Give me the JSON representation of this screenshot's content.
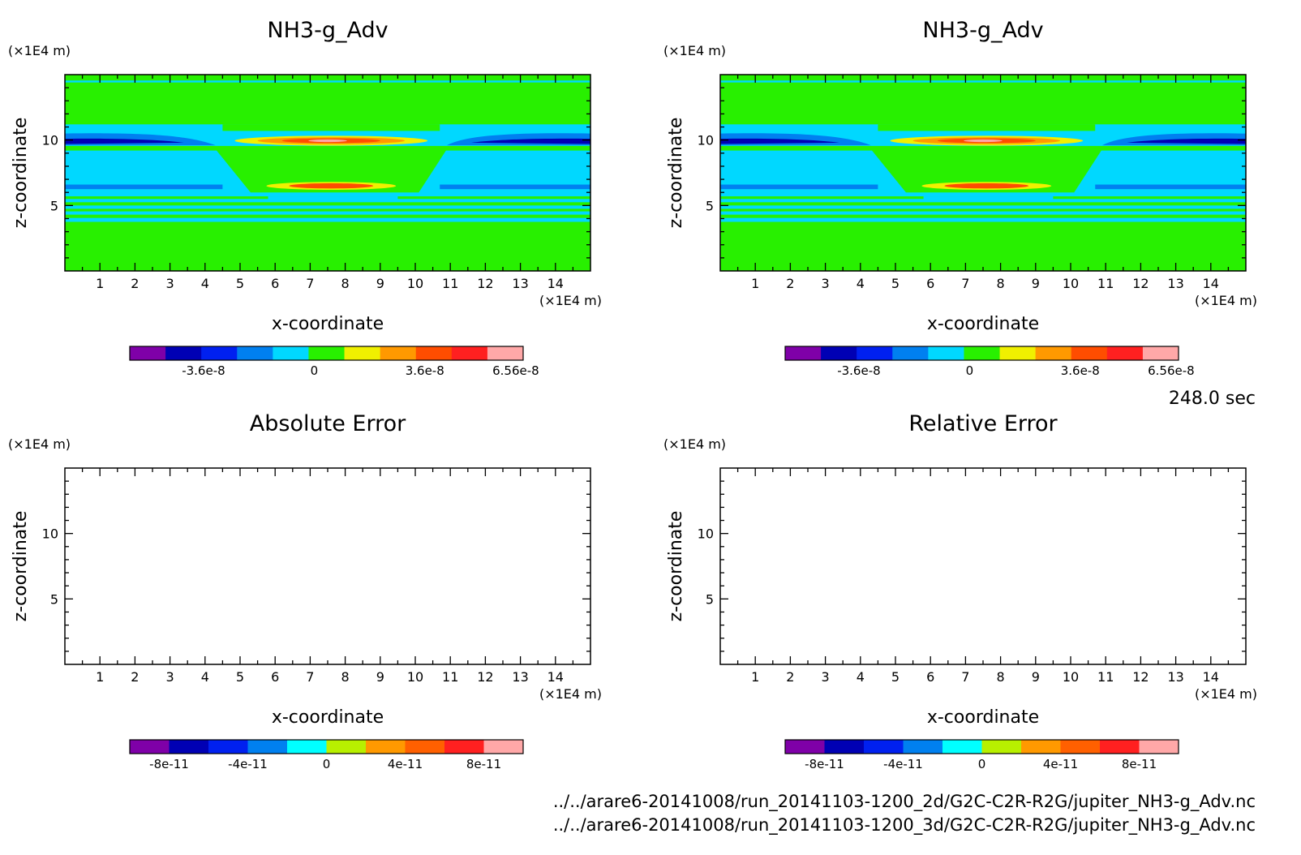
{
  "chart_data": [
    {
      "type": "heatmap",
      "title": "NH3-g_Adv",
      "xlabel": "x-coordinate",
      "ylabel": "z-coordinate",
      "x_unit": "(×1E4 m)",
      "y_unit": "(×1E4 m)",
      "xlim": [
        0,
        15
      ],
      "ylim": [
        0,
        15
      ],
      "x_ticks": [
        "1",
        "2",
        "3",
        "4",
        "5",
        "6",
        "7",
        "8",
        "9",
        "10",
        "11",
        "12",
        "13",
        "14"
      ],
      "y_ticks": [
        "5",
        "10"
      ],
      "colorbar": {
        "colors": [
          "#7f00a8",
          "#0000b4",
          "#0020f0",
          "#0080f0",
          "#00d8ff",
          "#28f000",
          "#f0f000",
          "#ff9900",
          "#ff4d00",
          "#ff2020",
          "#ffa8a8"
        ],
        "labels": [
          "-3.6e-8",
          "0",
          "3.6e-8",
          "6.56e-8"
        ],
        "label_values": [
          -3.6e-08,
          0,
          3.6e-08,
          6.56e-08
        ],
        "range": [
          -6e-08,
          6.8e-08
        ]
      },
      "field_regions": [
        {
          "level": "green",
          "z": [
            0,
            15
          ],
          "x": [
            0,
            15
          ],
          "note": "background 0"
        },
        {
          "level": "cyan",
          "z": [
            5.6,
            11.2
          ],
          "x": [
            0,
            15
          ]
        },
        {
          "level": "blue",
          "z": [
            9.2,
            10.4
          ],
          "x": [
            0,
            4.2
          ]
        },
        {
          "level": "navy",
          "z": [
            9.6,
            10.0
          ],
          "x": [
            0,
            2.8
          ]
        },
        {
          "level": "yellow",
          "z": [
            9.6,
            10.3
          ],
          "x": [
            4.8,
            10.3
          ]
        },
        {
          "level": "orange",
          "z": [
            9.7,
            10.2
          ],
          "x": [
            5.5,
            9.6
          ]
        },
        {
          "level": "red",
          "z": [
            9.75,
            10.15
          ],
          "x": [
            6.2,
            8.8
          ]
        },
        {
          "level": "pink",
          "z": [
            9.8,
            10.05
          ],
          "x": [
            6.9,
            8.0
          ]
        },
        {
          "level": "yellow",
          "z": [
            6.2,
            6.8
          ],
          "x": [
            5.8,
            9.4
          ]
        },
        {
          "level": "red",
          "z": [
            6.3,
            6.7
          ],
          "x": [
            6.6,
            8.6
          ]
        }
      ]
    },
    {
      "type": "heatmap",
      "title": "NH3-g_Adv",
      "xlabel": "x-coordinate",
      "ylabel": "z-coordinate",
      "x_unit": "(×1E4 m)",
      "y_unit": "(×1E4 m)",
      "xlim": [
        0,
        15
      ],
      "ylim": [
        0,
        15
      ],
      "x_ticks": [
        "1",
        "2",
        "3",
        "4",
        "5",
        "6",
        "7",
        "8",
        "9",
        "10",
        "11",
        "12",
        "13",
        "14"
      ],
      "y_ticks": [
        "5",
        "10"
      ],
      "colorbar": {
        "colors": [
          "#7f00a8",
          "#0000b4",
          "#0020f0",
          "#0080f0",
          "#00d8ff",
          "#28f000",
          "#f0f000",
          "#ff9900",
          "#ff4d00",
          "#ff2020",
          "#ffa8a8"
        ],
        "labels": [
          "-3.6e-8",
          "0",
          "3.6e-8",
          "6.56e-8"
        ],
        "label_values": [
          -3.6e-08,
          0,
          3.6e-08,
          6.56e-08
        ],
        "range": [
          -6e-08,
          6.8e-08
        ]
      }
    },
    {
      "type": "heatmap",
      "title": "Absolute Error",
      "xlabel": "x-coordinate",
      "ylabel": "z-coordinate",
      "x_unit": "(×1E4 m)",
      "y_unit": "(×1E4 m)",
      "xlim": [
        0,
        15
      ],
      "ylim": [
        0,
        15
      ],
      "x_ticks": [
        "1",
        "2",
        "3",
        "4",
        "5",
        "6",
        "7",
        "8",
        "9",
        "10",
        "11",
        "12",
        "13",
        "14"
      ],
      "y_ticks": [
        "5",
        "10"
      ],
      "colorbar": {
        "colors": [
          "#7f00a8",
          "#0000b4",
          "#0020f0",
          "#0080f0",
          "#00ffff",
          "#b8f000",
          "#ff9900",
          "#ff6000",
          "#ff2020",
          "#ffa8a8"
        ],
        "labels": [
          "-8e-11",
          "-4e-11",
          "0",
          "4e-11",
          "8e-11"
        ],
        "label_values": [
          -8e-11,
          -4e-11,
          0,
          4e-11,
          8e-11
        ],
        "range": [
          -1e-10,
          1e-10
        ]
      }
    },
    {
      "type": "heatmap",
      "title": "Relative Error",
      "xlabel": "x-coordinate",
      "ylabel": "z-coordinate",
      "x_unit": "(×1E4 m)",
      "y_unit": "(×1E4 m)",
      "xlim": [
        0,
        15
      ],
      "ylim": [
        0,
        15
      ],
      "x_ticks": [
        "1",
        "2",
        "3",
        "4",
        "5",
        "6",
        "7",
        "8",
        "9",
        "10",
        "11",
        "12",
        "13",
        "14"
      ],
      "y_ticks": [
        "5",
        "10"
      ],
      "colorbar": {
        "colors": [
          "#7f00a8",
          "#0000b4",
          "#0020f0",
          "#0080f0",
          "#00ffff",
          "#b8f000",
          "#ff9900",
          "#ff6000",
          "#ff2020",
          "#ffa8a8"
        ],
        "labels": [
          "-8e-11",
          "-4e-11",
          "0",
          "4e-11",
          "8e-11"
        ],
        "label_values": [
          -8e-11,
          -4e-11,
          0,
          4e-11,
          8e-11
        ],
        "range": [
          -1e-10,
          1e-10
        ]
      }
    }
  ],
  "time_label": "248.0 sec",
  "footer": {
    "line1": "../../arare6-20141008/run_20141103-1200_2d/G2C-C2R-R2G/jupiter_NH3-g_Adv.nc",
    "line2": "../../arare6-20141008/run_20141103-1200_3d/G2C-C2R-R2G/jupiter_NH3-g_Adv.nc"
  }
}
